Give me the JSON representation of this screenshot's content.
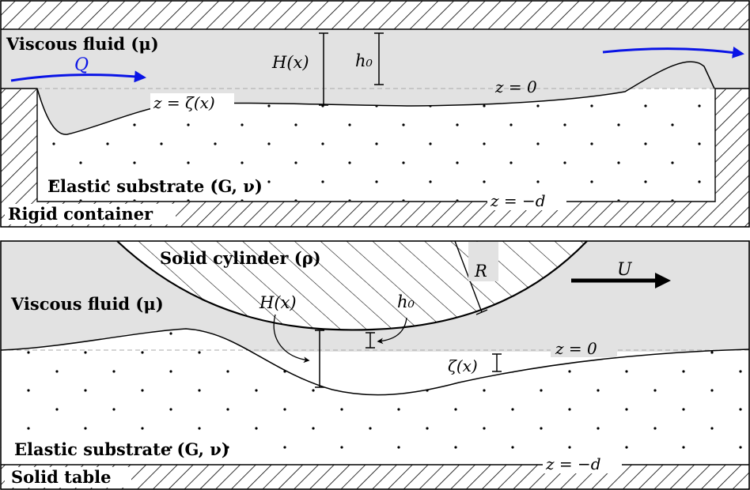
{
  "top_panel": {
    "fluid_label": "Viscous fluid (μ)",
    "flow_label": "Q",
    "H_label": "H(x)",
    "h0_label": "h₀",
    "z0_label": "z = 0",
    "zeta_label": "z = ζ(x)",
    "substrate_label": "Elastic substrate (G, ν)",
    "zd_label": "z = −d",
    "container_label": "Rigid container"
  },
  "bottom_panel": {
    "cylinder_label": "Solid cylinder (ρ)",
    "R_label": "R",
    "U_label": "U",
    "fluid_label": "Viscous fluid (μ)",
    "H_label": "H(x)",
    "h0_label": "h₀",
    "z0_label": "z = 0",
    "zeta_label": "ζ(x)",
    "substrate_label": "Elastic substrate (G, ν)",
    "zd_label": "z = −d",
    "table_label": "Solid table"
  },
  "colors": {
    "fluid": "#e2e2e2",
    "flow_arrow": "#0a14e6",
    "line": "#000000",
    "dashed": "#aaaaaa"
  }
}
